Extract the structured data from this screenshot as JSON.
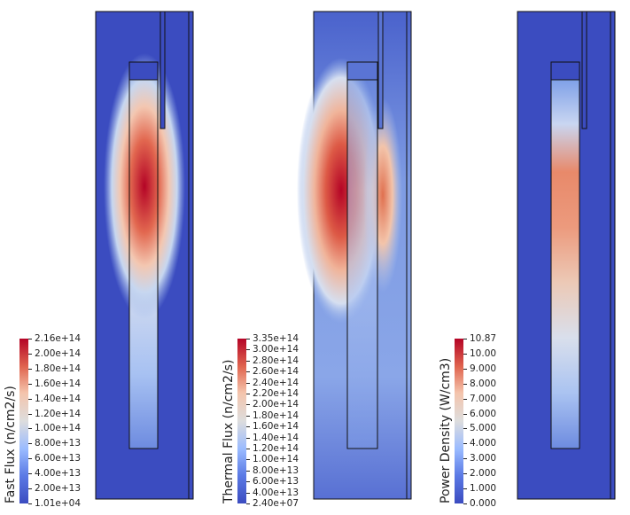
{
  "panels": [
    {
      "id": "fast-flux",
      "title": "Fast Flux (n/cm2/s)",
      "ticks": [
        "2.16e+14",
        "2.00e+14",
        "1.80e+14",
        "1.60e+14",
        "1.40e+14",
        "1.20e+14",
        "1.00e+14",
        "8.00e+13",
        "6.00e+13",
        "4.00e+13",
        "2.00e+13",
        "1.01e+04"
      ],
      "colorscale": [
        "#b40426",
        "#e0654f",
        "#f4c4ac",
        "#dddddd",
        "#9abbff",
        "#5b7ae5",
        "#3b4cc0"
      ]
    },
    {
      "id": "thermal-flux",
      "title": "Thermal Flux (n/cm2/s)",
      "ticks": [
        "3.35e+14",
        "3.00e+14",
        "2.80e+14",
        "2.60e+14",
        "2.40e+14",
        "2.20e+14",
        "2.00e+14",
        "1.80e+14",
        "1.60e+14",
        "1.40e+14",
        "1.20e+14",
        "1.00e+14",
        "8.00e+13",
        "6.00e+13",
        "4.00e+13",
        "2.40e+07"
      ],
      "colorscale": [
        "#b40426",
        "#e0654f",
        "#f4c4ac",
        "#dddddd",
        "#9abbff",
        "#5b7ae5",
        "#3b4cc0"
      ]
    },
    {
      "id": "power-density",
      "title": "Power Density (W/cm3)",
      "ticks": [
        "10.87",
        "10.00",
        "9.000",
        "8.000",
        "7.000",
        "6.000",
        "5.000",
        "4.000",
        "3.000",
        "2.000",
        "1.000",
        "0.000"
      ],
      "colorscale": [
        "#b40426",
        "#e0654f",
        "#f4c4ac",
        "#dddddd",
        "#9abbff",
        "#5b7ae5",
        "#3b4cc0"
      ]
    }
  ]
}
